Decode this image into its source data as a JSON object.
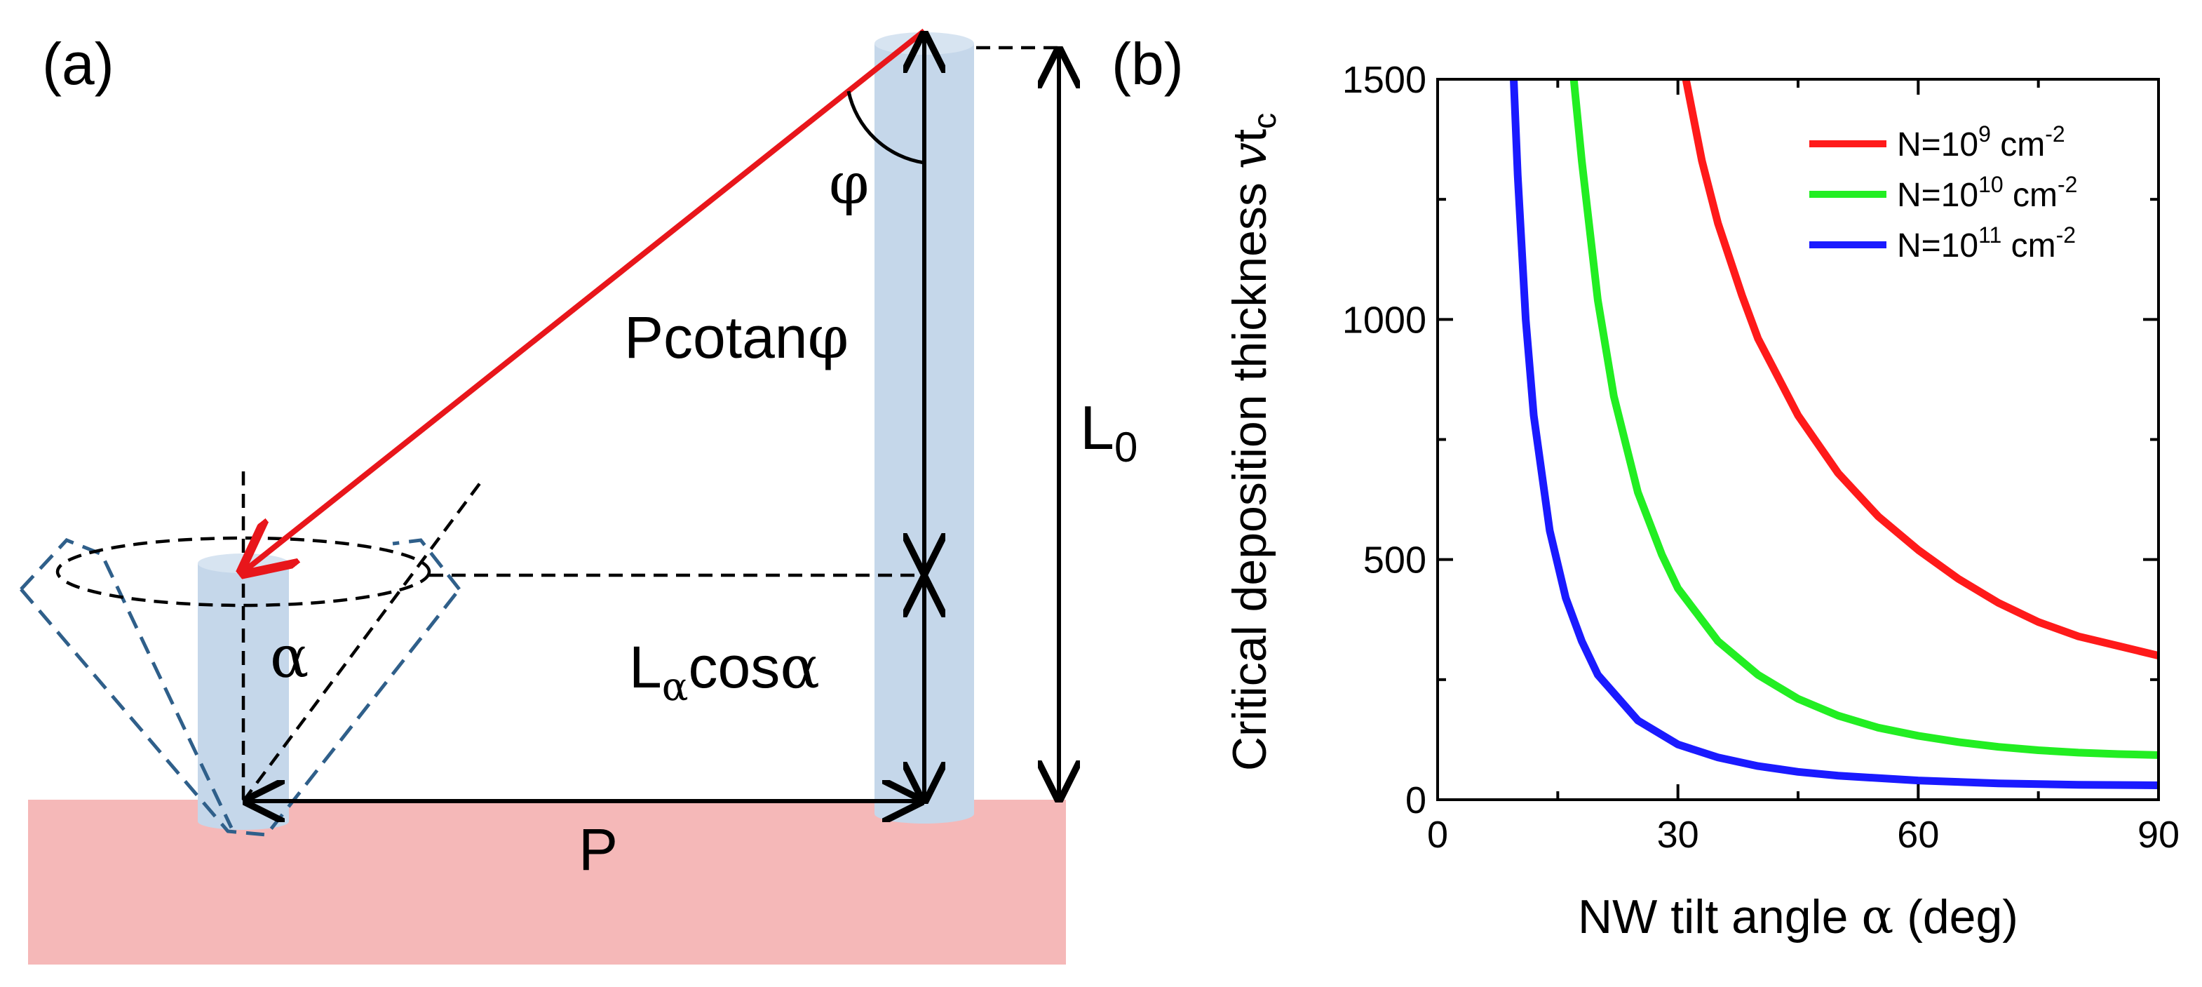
{
  "panel_a": {
    "label": "(a)",
    "labels": {
      "pcot_main": "Pcotan",
      "pcot_sym": "φ",
      "phi": "φ",
      "alpha": "α",
      "lcos_L": "L",
      "lcos_sub": "α",
      "lcos_rest": "cos",
      "lcos_sym": "α",
      "l0_L": "L",
      "l0_sub": "0",
      "p": "P"
    },
    "colors": {
      "substrate": "#f5b8b8",
      "nanowire": "#c5d7ea",
      "ray": "#e8161b",
      "cone": "#2f5f8a"
    }
  },
  "panel_b": {
    "label": "(b)",
    "ylabel_main": "Critical deposition thickness ",
    "ylabel_v": "v",
    "ylabel_t": "t",
    "ylabel_sub": "c",
    "xlabel_main": "NW tilt angle ",
    "xlabel_sym": "α",
    "xlabel_unit": " (deg)"
  },
  "chart_data": {
    "type": "line",
    "title": "",
    "xlabel": "NW tilt angle α (deg)",
    "ylabel": "Critical deposition thickness vt_c",
    "xlim": [
      0,
      90
    ],
    "ylim": [
      0,
      1500
    ],
    "xticks": [
      0,
      30,
      60,
      90
    ],
    "yticks": [
      0,
      500,
      1000,
      1500
    ],
    "x_tick_labels": [
      "0",
      "30",
      "60",
      "90"
    ],
    "y_tick_labels": [
      "0",
      "500",
      "1000",
      "1500"
    ],
    "grid": false,
    "legend_position": "top-right",
    "x": [
      10,
      12,
      15,
      18,
      20,
      25,
      30,
      35,
      40,
      45,
      50,
      55,
      60,
      65,
      70,
      75,
      80,
      85,
      90
    ],
    "series": [
      {
        "name": "N=10⁹ cm⁻²",
        "legend_base": "N=10",
        "legend_exp": "9",
        "legend_unit": " cm",
        "legend_unit_exp": "-2",
        "color": "#ff1a1a",
        "x": [
          31,
          33,
          35,
          38,
          40,
          45,
          50,
          55,
          60,
          65,
          70,
          75,
          80,
          85,
          90
        ],
        "values": [
          1500,
          1330,
          1200,
          1050,
          960,
          800,
          680,
          590,
          520,
          460,
          410,
          370,
          340,
          320,
          300
        ]
      },
      {
        "name": "N=10¹⁰ cm⁻²",
        "legend_base": "N=10",
        "legend_exp": "10",
        "legend_unit": " cm",
        "legend_unit_exp": "-2",
        "color": "#22ee22",
        "x": [
          17,
          18,
          20,
          22,
          25,
          28,
          30,
          35,
          40,
          45,
          50,
          55,
          60,
          65,
          70,
          75,
          80,
          85,
          90
        ],
        "values": [
          1500,
          1330,
          1040,
          840,
          640,
          510,
          440,
          330,
          260,
          210,
          175,
          150,
          133,
          120,
          110,
          103,
          98,
          95,
          93
        ]
      },
      {
        "name": "N=10¹¹ cm⁻²",
        "legend_base": "N=10",
        "legend_exp": "11",
        "legend_unit": " cm",
        "legend_unit_exp": "-2",
        "color": "#1a1aff",
        "x": [
          9.5,
          10,
          11,
          12,
          14,
          16,
          18,
          20,
          25,
          30,
          35,
          40,
          45,
          50,
          60,
          70,
          80,
          90
        ],
        "values": [
          1500,
          1300,
          1000,
          800,
          560,
          420,
          330,
          260,
          165,
          115,
          88,
          70,
          58,
          50,
          40,
          34,
          31,
          30
        ]
      }
    ]
  }
}
